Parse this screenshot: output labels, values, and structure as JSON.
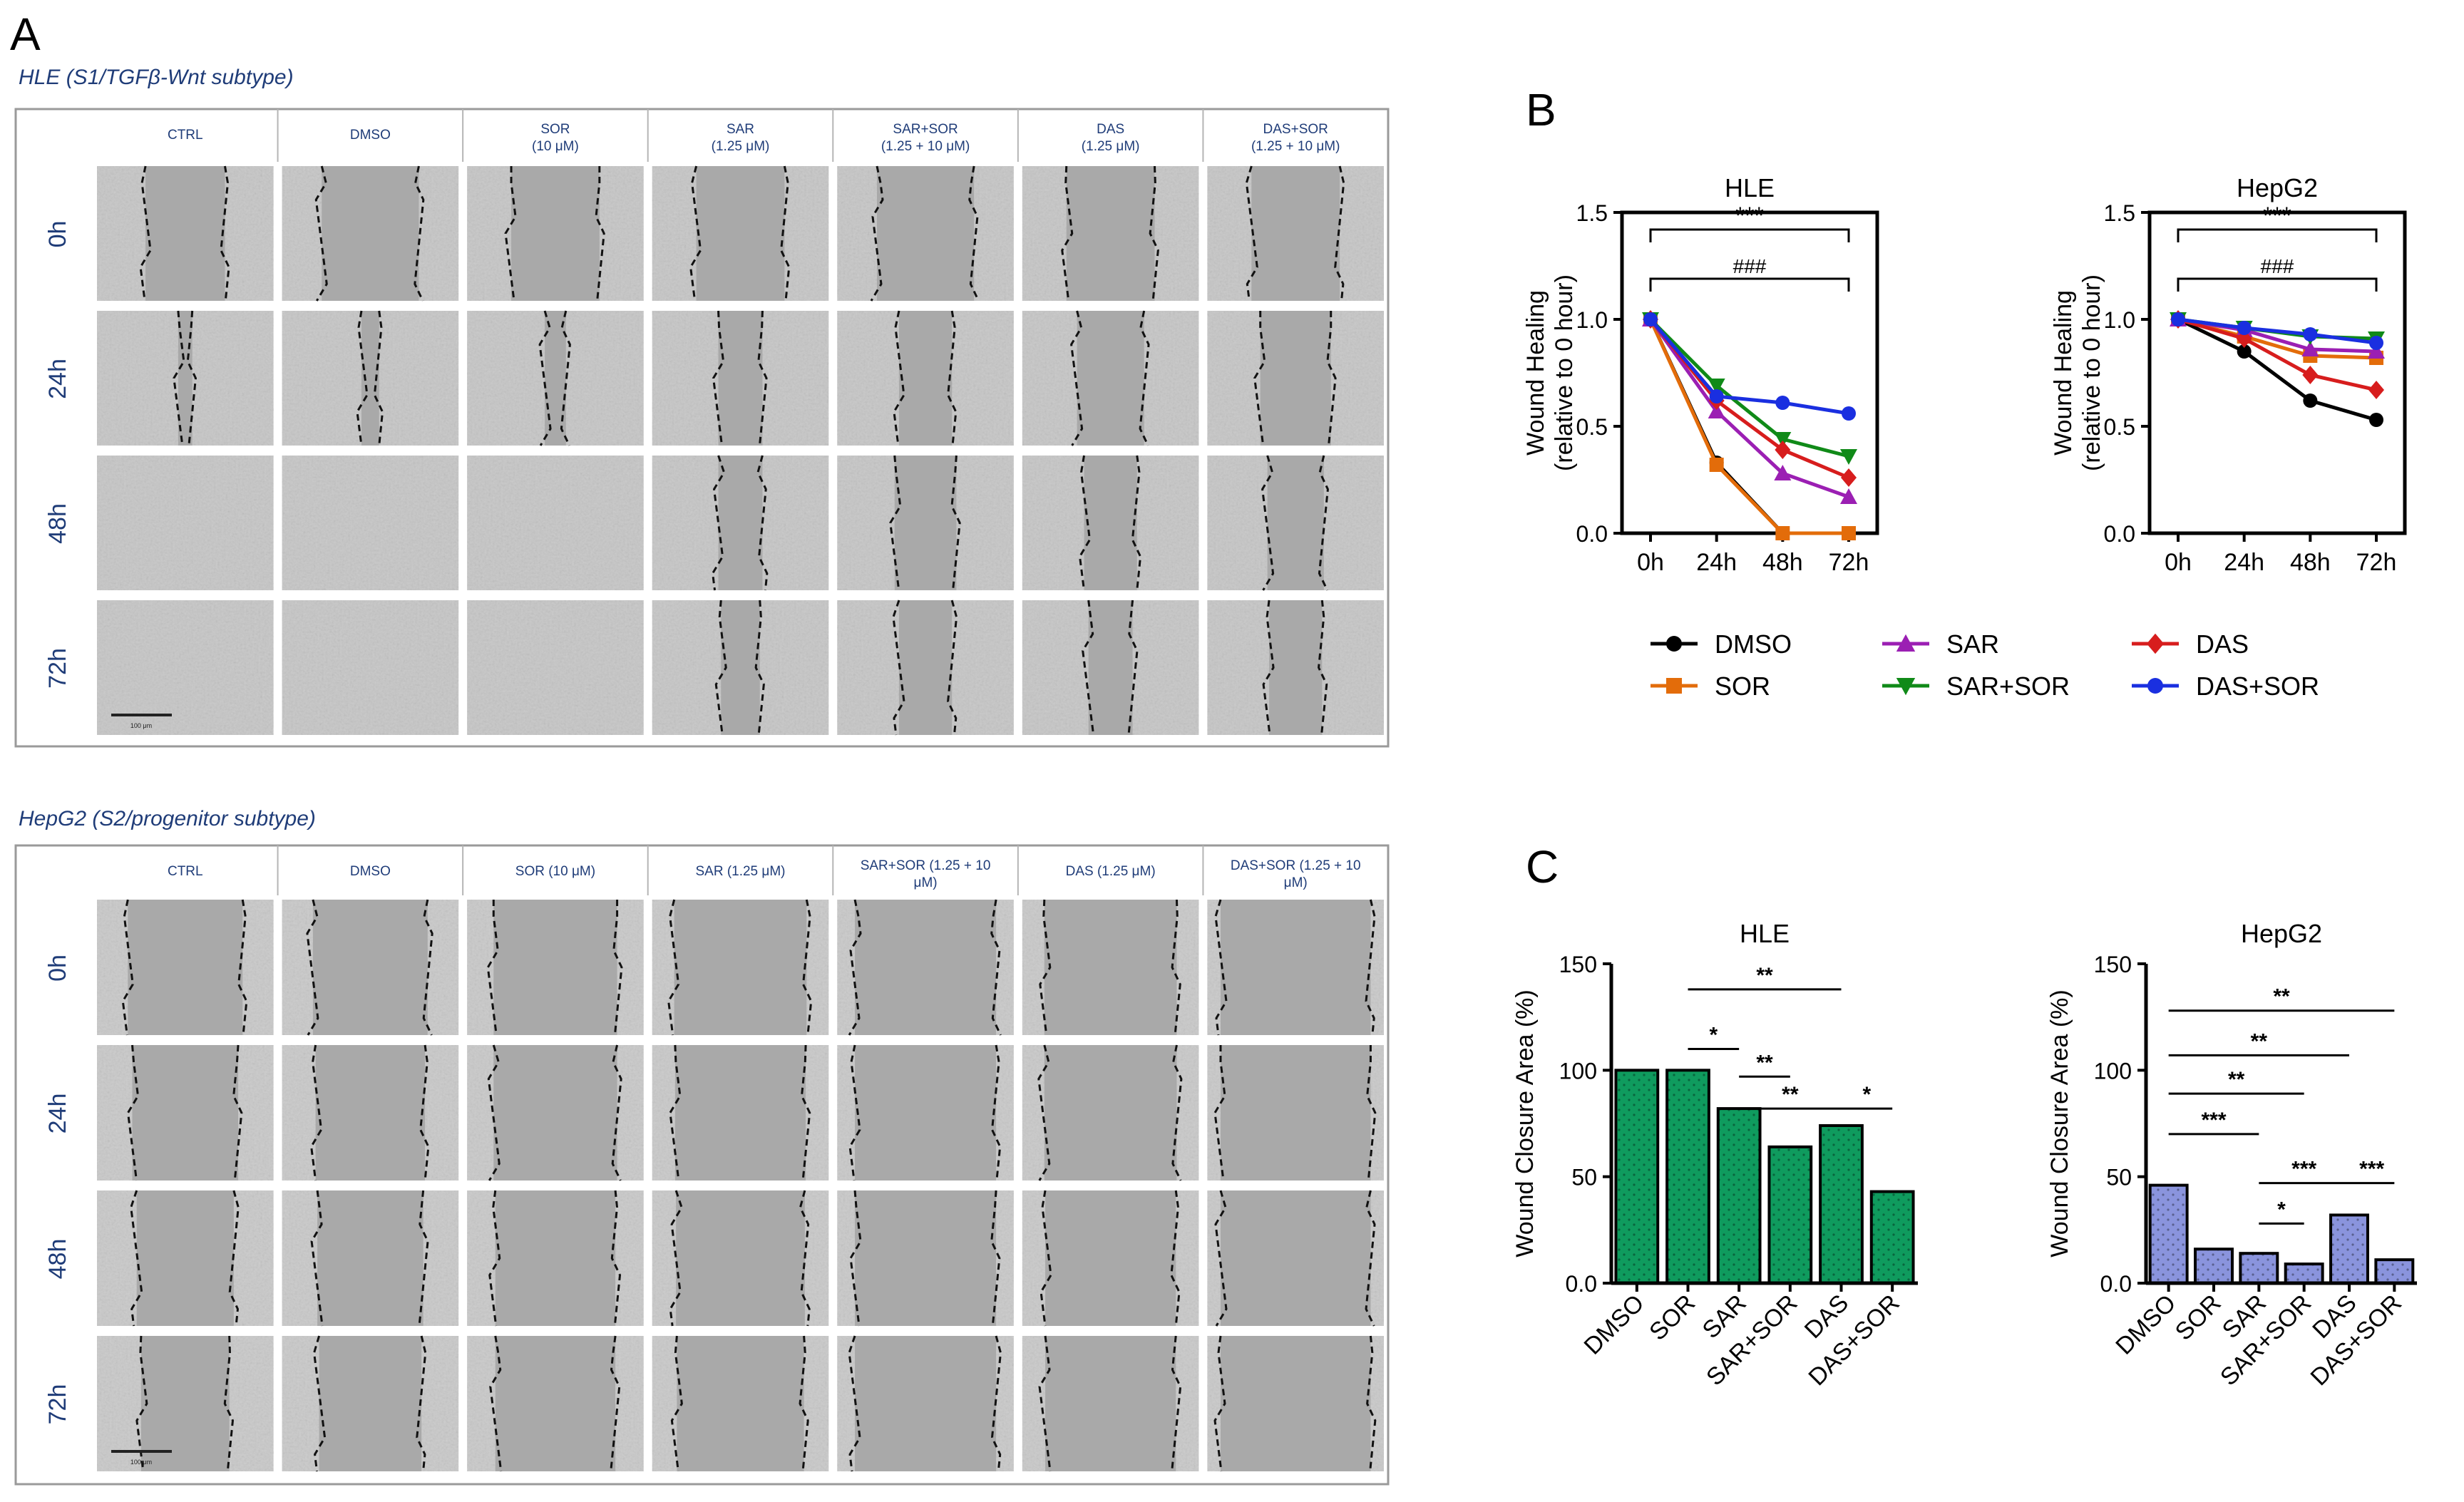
{
  "panel_a": {
    "letter": "A",
    "blocks": [
      {
        "title": "HLE (S1/TGFβ-Wnt subtype)",
        "columns": [
          {
            "lines": [
              "CTRL"
            ]
          },
          {
            "lines": [
              "DMSO"
            ]
          },
          {
            "lines": [
              "SOR",
              "(10 μM)"
            ]
          },
          {
            "lines": [
              "SAR",
              "(1.25 μM)"
            ]
          },
          {
            "lines": [
              "SAR+SOR",
              "(1.25 + 10 μM)"
            ]
          },
          {
            "lines": [
              "DAS",
              "(1.25 μM)"
            ]
          },
          {
            "lines": [
              "DAS+SOR",
              "(1.25 + 10 μM)"
            ]
          }
        ],
        "rows": [
          "0h",
          "24h",
          "48h",
          "72h"
        ],
        "scalebar_label": "100 μm",
        "wound_widths": [
          [
            0.45,
            0.08,
            0.0,
            0.0
          ],
          [
            0.55,
            0.1,
            0.0,
            0.0
          ],
          [
            0.5,
            0.12,
            0.0,
            0.0
          ],
          [
            0.5,
            0.25,
            0.25,
            0.22
          ],
          [
            0.55,
            0.3,
            0.35,
            0.3
          ],
          [
            0.5,
            0.38,
            0.3,
            0.25
          ],
          [
            0.5,
            0.4,
            0.32,
            0.3
          ]
        ]
      },
      {
        "title": "HepG2 (S2/progenitor subtype)",
        "columns": [
          {
            "lines": [
              "CTRL"
            ]
          },
          {
            "lines": [
              "DMSO"
            ]
          },
          {
            "lines": [
              "SOR (10 μM)"
            ]
          },
          {
            "lines": [
              "SAR (1.25 μM)"
            ]
          },
          {
            "lines": [
              "SAR+SOR (1.25 + 10",
              "μM)"
            ]
          },
          {
            "lines": [
              "DAS (1.25 μM)"
            ]
          },
          {
            "lines": [
              "DAS+SOR (1.25 + 10",
              "μM)"
            ]
          }
        ],
        "rows": [
          "0h",
          "24h",
          "48h",
          "72h"
        ],
        "scalebar_label": "100 μm",
        "wound_widths": [
          [
            0.65,
            0.6,
            0.55,
            0.5
          ],
          [
            0.65,
            0.62,
            0.6,
            0.58
          ],
          [
            0.7,
            0.7,
            0.68,
            0.68
          ],
          [
            0.75,
            0.74,
            0.73,
            0.72
          ],
          [
            0.8,
            0.8,
            0.8,
            0.8
          ],
          [
            0.75,
            0.75,
            0.74,
            0.74
          ],
          [
            0.85,
            0.85,
            0.85,
            0.85
          ]
        ]
      }
    ]
  },
  "panel_b_letter": "B",
  "panel_c_letter": "C",
  "legend": [
    {
      "name": "DMSO",
      "color": "#000000",
      "marker": "circle"
    },
    {
      "name": "SOR",
      "color": "#e36c0a",
      "marker": "square"
    },
    {
      "name": "SAR",
      "color": "#9b1fb3",
      "marker": "triangle-up"
    },
    {
      "name": "SAR+SOR",
      "color": "#108a18",
      "marker": "triangle-down"
    },
    {
      "name": "DAS",
      "color": "#d71d1d",
      "marker": "diamond"
    },
    {
      "name": "DAS+SOR",
      "color": "#1a2fe0",
      "marker": "circle"
    }
  ],
  "chart_data": [
    {
      "type": "line",
      "panel": "B",
      "title": "HLE",
      "ylabel": "Wound Healing (relative to 0 hour)",
      "categories": [
        "0h",
        "24h",
        "48h",
        "72h"
      ],
      "ylim": [
        0,
        1.5
      ],
      "yticks": [
        "0.0",
        "0.5",
        "1.0",
        "1.5"
      ],
      "series": [
        {
          "name": "DMSO",
          "values": [
            1.0,
            0.33,
            0.0,
            0.0
          ]
        },
        {
          "name": "SOR",
          "values": [
            1.0,
            0.32,
            0.0,
            0.0
          ]
        },
        {
          "name": "SAR",
          "values": [
            1.0,
            0.57,
            0.28,
            0.17
          ]
        },
        {
          "name": "SAR+SOR",
          "values": [
            1.0,
            0.69,
            0.44,
            0.36
          ]
        },
        {
          "name": "DAS",
          "values": [
            1.0,
            0.62,
            0.39,
            0.26
          ]
        },
        {
          "name": "DAS+SOR",
          "values": [
            1.0,
            0.64,
            0.61,
            0.56
          ]
        }
      ],
      "annotations": [
        "***",
        "###"
      ]
    },
    {
      "type": "line",
      "panel": "B",
      "title": "HepG2",
      "ylabel": "Wound Healing (relative to 0 hour)",
      "categories": [
        "0h",
        "24h",
        "48h",
        "72h"
      ],
      "ylim": [
        0,
        1.5
      ],
      "yticks": [
        "0.0",
        "0.5",
        "1.0",
        "1.5"
      ],
      "series": [
        {
          "name": "DMSO",
          "values": [
            1.0,
            0.85,
            0.62,
            0.53
          ]
        },
        {
          "name": "SOR",
          "values": [
            1.0,
            0.92,
            0.83,
            0.82
          ]
        },
        {
          "name": "SAR",
          "values": [
            1.0,
            0.95,
            0.86,
            0.85
          ]
        },
        {
          "name": "SAR+SOR",
          "values": [
            1.0,
            0.96,
            0.92,
            0.91
          ]
        },
        {
          "name": "DAS",
          "values": [
            1.0,
            0.91,
            0.74,
            0.67
          ]
        },
        {
          "name": "DAS+SOR",
          "values": [
            1.0,
            0.96,
            0.93,
            0.89
          ]
        }
      ],
      "annotations": [
        "***",
        "###"
      ]
    },
    {
      "type": "bar",
      "panel": "C",
      "title": "HLE",
      "ylabel": "Wound Closure Area (%)",
      "categories": [
        "DMSO",
        "SOR",
        "SAR",
        "SAR+SOR",
        "DAS",
        "DAS+SOR"
      ],
      "values": [
        100,
        100,
        82,
        64,
        74,
        43
      ],
      "ylim": [
        0,
        150
      ],
      "yticks": [
        "0.0",
        "50",
        "100",
        "150"
      ],
      "bar_color": "#0f9b5e",
      "comparisons": [
        {
          "from": "SOR",
          "to": "DAS",
          "label": "**"
        },
        {
          "from": "SOR",
          "to": "SAR",
          "label": "*"
        },
        {
          "from": "SAR",
          "to": "SAR+SOR",
          "label": "**"
        },
        {
          "from": "SAR",
          "to": "DAS",
          "label": "**"
        },
        {
          "from": "DAS",
          "to": "DAS+SOR",
          "label": "*"
        }
      ]
    },
    {
      "type": "bar",
      "panel": "C",
      "title": "HepG2",
      "ylabel": "Wound Closure Area (%)",
      "categories": [
        "DMSO",
        "SOR",
        "SAR",
        "SAR+SOR",
        "DAS",
        "DAS+SOR"
      ],
      "values": [
        46,
        16,
        14,
        9,
        32,
        11
      ],
      "ylim": [
        0,
        150
      ],
      "yticks": [
        "0.0",
        "50",
        "100",
        "150"
      ],
      "bar_color": "#8a94dd",
      "comparisons": [
        {
          "from": "DMSO",
          "to": "DAS+SOR",
          "label": "**"
        },
        {
          "from": "DMSO",
          "to": "DAS",
          "label": "**"
        },
        {
          "from": "DMSO",
          "to": "SAR+SOR",
          "label": "**"
        },
        {
          "from": "DMSO",
          "to": "SAR",
          "label": "***"
        },
        {
          "from": "SAR",
          "to": "DAS",
          "label": "***"
        },
        {
          "from": "DAS",
          "to": "DAS+SOR",
          "label": "***"
        },
        {
          "from": "SAR",
          "to": "SAR+SOR",
          "label": "*"
        }
      ]
    }
  ]
}
